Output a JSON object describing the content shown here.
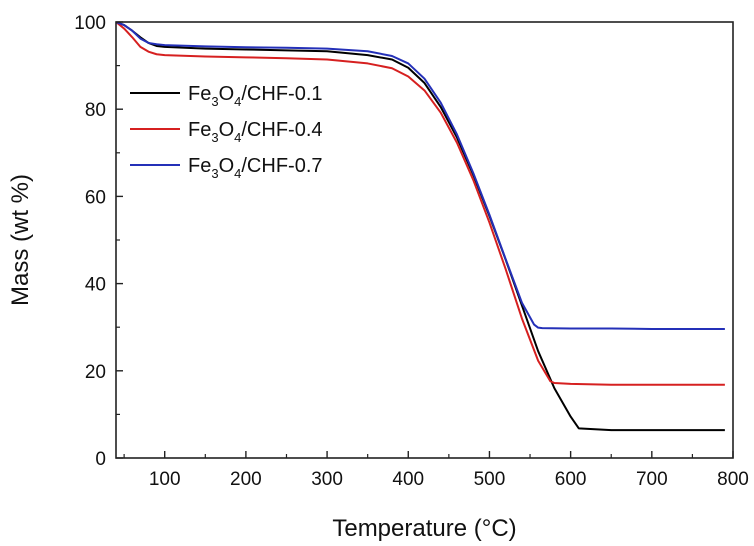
{
  "chart_data": {
    "type": "line",
    "title": "",
    "xlabel": "Temperature (°C)",
    "ylabel": "Mass (wt %)",
    "xlim": [
      40,
      800
    ],
    "ylim": [
      0,
      100
    ],
    "xticks": [
      "100",
      "200",
      "300",
      "400",
      "500",
      "600",
      "700",
      "800"
    ],
    "yticks": [
      "0",
      "20",
      "40",
      "60",
      "80",
      "100"
    ],
    "legend_position": "upper-left",
    "grid": false,
    "series": [
      {
        "name": "Fe3O4/CHF-0.1",
        "name_parts": {
          "a": "Fe",
          "s1": "3",
          "b": "O",
          "s2": "4",
          "c": "/CHF-0.1"
        },
        "color": "#000000",
        "x": [
          40,
          50,
          60,
          70,
          80,
          90,
          100,
          150,
          200,
          250,
          300,
          350,
          380,
          400,
          420,
          440,
          460,
          480,
          500,
          520,
          540,
          560,
          580,
          600,
          610,
          650,
          700,
          750,
          790
        ],
        "y": [
          100,
          99.3,
          98,
          96.5,
          95.2,
          94.5,
          94.3,
          93.9,
          93.7,
          93.5,
          93.3,
          92.4,
          91.4,
          89.5,
          86,
          80.5,
          73.5,
          65,
          55.5,
          45.5,
          35,
          24.5,
          16,
          9.5,
          6.8,
          6.4,
          6.4,
          6.4,
          6.4
        ]
      },
      {
        "name": "Fe3O4/CHF-0.4",
        "name_parts": {
          "a": "Fe",
          "s1": "3",
          "b": "O",
          "s2": "4",
          "c": "/CHF-0.4"
        },
        "color": "#d62020",
        "x": [
          40,
          50,
          60,
          70,
          80,
          90,
          100,
          150,
          200,
          250,
          300,
          350,
          380,
          400,
          420,
          440,
          460,
          480,
          500,
          520,
          540,
          560,
          575,
          580,
          600,
          650,
          700,
          750,
          790
        ],
        "y": [
          100,
          98.5,
          96.5,
          94.3,
          93.2,
          92.6,
          92.4,
          92.1,
          91.9,
          91.7,
          91.4,
          90.5,
          89.4,
          87.5,
          84.3,
          79.2,
          72.3,
          63.8,
          54,
          43.3,
          32,
          22.3,
          17.6,
          17.2,
          17,
          16.8,
          16.8,
          16.8,
          16.8
        ]
      },
      {
        "name": "Fe3O4/CHF-0.7",
        "name_parts": {
          "a": "Fe",
          "s1": "3",
          "b": "O",
          "s2": "4",
          "c": "/CHF-0.7"
        },
        "color": "#2430b8",
        "x": [
          40,
          50,
          60,
          70,
          80,
          90,
          100,
          150,
          200,
          250,
          300,
          350,
          380,
          400,
          420,
          440,
          460,
          480,
          500,
          520,
          540,
          555,
          560,
          565,
          600,
          650,
          700,
          750,
          790
        ],
        "y": [
          100,
          99.3,
          98,
          96.2,
          95.2,
          94.9,
          94.7,
          94.4,
          94.2,
          94.1,
          93.9,
          93.3,
          92.2,
          90.5,
          87,
          81.5,
          74.2,
          65.4,
          55.8,
          45.6,
          35.6,
          30.6,
          29.9,
          29.8,
          29.7,
          29.7,
          29.6,
          29.6,
          29.6
        ]
      }
    ]
  }
}
